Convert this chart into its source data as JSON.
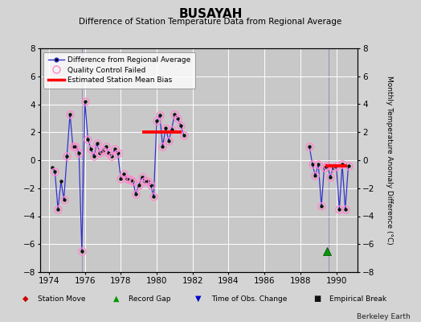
{
  "title": "BUSAYAH",
  "subtitle": "Difference of Station Temperature Data from Regional Average",
  "ylabel_right": "Monthly Temperature Anomaly Difference (°C)",
  "xlim": [
    1973.5,
    1991.2
  ],
  "ylim": [
    -8,
    8
  ],
  "background_color": "#d4d4d4",
  "plot_bg_color": "#c8c8c8",
  "grid_color": "#ffffff",
  "berkeley_earth_label": "Berkeley Earth",
  "main_line_color": "#3333cc",
  "main_marker_color": "#111111",
  "qc_marker_color": "#ff88cc",
  "bias_color": "#ff0000",
  "vertical_line_color": "#8888bb",
  "segment1_x": [
    1974.17,
    1974.33,
    1974.5,
    1974.67,
    1974.83,
    1975.0,
    1975.17,
    1975.33,
    1975.5,
    1975.67,
    1975.83,
    1976.0,
    1976.17,
    1976.33,
    1976.5,
    1976.67,
    1976.83,
    1977.0,
    1977.17,
    1977.33,
    1977.5,
    1977.67,
    1977.83,
    1978.0,
    1978.17,
    1978.33,
    1978.5,
    1978.67,
    1978.83,
    1979.0,
    1979.17,
    1979.33,
    1979.5,
    1979.67,
    1979.83,
    1980.0,
    1980.17,
    1980.33,
    1980.5,
    1980.67,
    1980.83,
    1981.0,
    1981.17,
    1981.33,
    1981.5
  ],
  "segment1_y": [
    -0.5,
    -0.8,
    -3.5,
    -1.5,
    -2.8,
    0.3,
    3.3,
    1.0,
    1.0,
    0.5,
    -6.5,
    4.2,
    1.5,
    0.8,
    0.3,
    1.2,
    0.5,
    0.7,
    1.0,
    0.5,
    0.3,
    0.8,
    0.5,
    -1.3,
    -1.0,
    -1.3,
    -1.4,
    -1.5,
    -2.4,
    -1.8,
    -1.2,
    -1.5,
    -1.5,
    -1.8,
    -2.6,
    2.8,
    3.2,
    1.0,
    2.3,
    1.4,
    2.2,
    3.3,
    3.0,
    2.5,
    1.8
  ],
  "qc_failed_x": [
    1974.33,
    1974.5,
    1974.83,
    1975.0,
    1975.17,
    1975.33,
    1975.5,
    1975.67,
    1975.83,
    1976.0,
    1976.17,
    1976.33,
    1976.5,
    1976.67,
    1976.83,
    1977.0,
    1977.17,
    1977.33,
    1977.5,
    1977.67,
    1977.83,
    1978.0,
    1978.17,
    1978.33,
    1978.5,
    1978.67,
    1978.83,
    1979.0,
    1979.17,
    1979.33,
    1979.5,
    1979.67,
    1979.83,
    1980.0,
    1980.17,
    1980.33,
    1980.5,
    1980.67,
    1980.83,
    1981.0,
    1981.17,
    1981.33,
    1981.5
  ],
  "qc_failed_y": [
    -0.8,
    -3.5,
    -2.8,
    0.3,
    3.3,
    1.0,
    1.0,
    0.5,
    -6.5,
    4.2,
    1.5,
    0.8,
    0.3,
    1.2,
    0.5,
    0.7,
    1.0,
    0.5,
    0.3,
    0.8,
    0.5,
    -1.3,
    -1.0,
    -1.3,
    -1.4,
    -1.5,
    -2.4,
    -1.8,
    -1.2,
    -1.5,
    -1.5,
    -1.8,
    -2.6,
    2.8,
    3.2,
    1.0,
    2.3,
    1.4,
    2.2,
    3.3,
    3.0,
    2.5,
    1.8
  ],
  "bias_x_start": 1979.2,
  "bias_x_end": 1981.4,
  "bias_y": 2.0,
  "segment2_x": [
    1988.5,
    1988.67,
    1988.83,
    1989.0,
    1989.17,
    1989.33,
    1989.5,
    1989.67,
    1989.83,
    1990.0,
    1990.17,
    1990.33,
    1990.5,
    1990.67
  ],
  "segment2_y": [
    1.0,
    -0.3,
    -1.1,
    -0.3,
    -3.3,
    -0.5,
    -0.4,
    -1.2,
    -0.5,
    -0.4,
    -3.5,
    -0.3,
    -3.5,
    -0.4
  ],
  "qc2_x": [
    1988.5,
    1988.67,
    1988.83,
    1989.0,
    1989.17,
    1989.33,
    1989.5,
    1989.67,
    1989.83,
    1990.0,
    1990.17,
    1990.33,
    1990.5,
    1990.67
  ],
  "qc2_y": [
    1.0,
    -0.3,
    -1.1,
    -0.3,
    -3.3,
    -0.5,
    -0.4,
    -1.2,
    -0.5,
    -0.4,
    -3.5,
    -0.3,
    -3.5,
    -0.4
  ],
  "bias2_x_start": 1989.4,
  "bias2_x_end": 1990.6,
  "bias2_y": -0.4,
  "vertical_line1_x": 1975.83,
  "vertical_line2_x": 1989.55,
  "record_gap_x": 1989.5,
  "record_gap_y": -6.5,
  "xticks": [
    1974,
    1976,
    1978,
    1980,
    1982,
    1984,
    1986,
    1988,
    1990
  ],
  "yticks": [
    -8,
    -6,
    -4,
    -2,
    0,
    2,
    4,
    6,
    8
  ]
}
